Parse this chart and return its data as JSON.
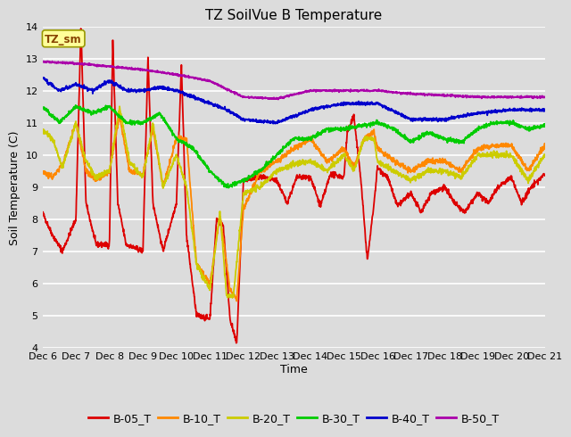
{
  "title": "TZ SoilVue B Temperature",
  "ylabel": "Soil Temperature (C)",
  "xlabel": "Time",
  "ylim": [
    4.0,
    14.0
  ],
  "yticks": [
    4.0,
    5.0,
    6.0,
    7.0,
    8.0,
    9.0,
    10.0,
    11.0,
    12.0,
    13.0,
    14.0
  ],
  "xtick_labels": [
    "Dec 6",
    "Dec 7",
    "Dec 8",
    "Dec 9",
    "Dec 10",
    "Dec 11",
    "Dec 12",
    "Dec 13",
    "Dec 14",
    "Dec 15",
    "Dec 16",
    "Dec 17",
    "Dec 18",
    "Dec 19",
    "Dec 20",
    "Dec 21"
  ],
  "legend_labels": [
    "B-05_T",
    "B-10_T",
    "B-20_T",
    "B-30_T",
    "B-40_T",
    "B-50_T"
  ],
  "colors": [
    "#dd0000",
    "#ff8800",
    "#cccc00",
    "#00cc00",
    "#0000cc",
    "#aa00aa"
  ],
  "background_color": "#dcdcdc",
  "plot_bg_color": "#dcdcdc",
  "grid_color": "#ffffff",
  "annotation_text": "TZ_sm",
  "annotation_bg": "#ffff99",
  "annotation_border": "#999900",
  "title_fontsize": 11,
  "axis_fontsize": 9,
  "tick_fontsize": 8,
  "legend_fontsize": 9,
  "linewidth": 1.3
}
